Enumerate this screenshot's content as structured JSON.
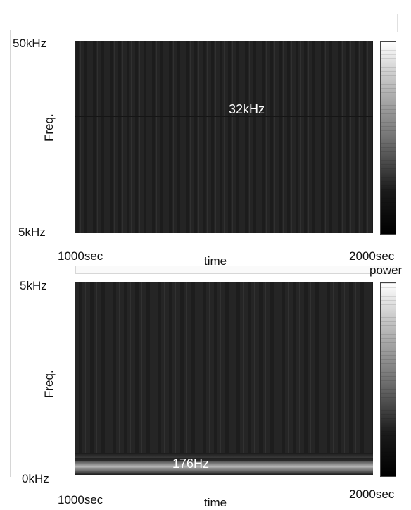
{
  "chart_data": [
    {
      "type": "heatmap",
      "title": "",
      "xlabel": "time",
      "ylabel": "Freq.",
      "x_ticks": [
        "1000sec",
        "2000sec"
      ],
      "y_ticks": [
        "50kHz",
        "5kHz"
      ],
      "x_range": [
        1000,
        2000
      ],
      "y_range": [
        5,
        50
      ],
      "y_units": "kHz",
      "annotations": [
        {
          "text": "32kHz",
          "value": 32
        }
      ],
      "colorbar_label": "power",
      "colors": {
        "background": "#212121",
        "highlight": "#ffffff",
        "grid_line": "#2f2f2f"
      }
    },
    {
      "type": "heatmap",
      "title": "",
      "xlabel": "time",
      "ylabel": "Freq.",
      "x_ticks": [
        "1000sec",
        "2000sec"
      ],
      "y_ticks": [
        "5kHz",
        "0kHz"
      ],
      "x_range": [
        1000,
        2000
      ],
      "y_range": [
        0,
        5
      ],
      "y_units": "kHz",
      "annotations": [
        {
          "text": "176Hz",
          "value": 0.176
        }
      ],
      "colorbar_label": "power",
      "colors": {
        "background": "#222222",
        "highlight": "#ffffff",
        "band": "#8a8a8a"
      }
    }
  ]
}
